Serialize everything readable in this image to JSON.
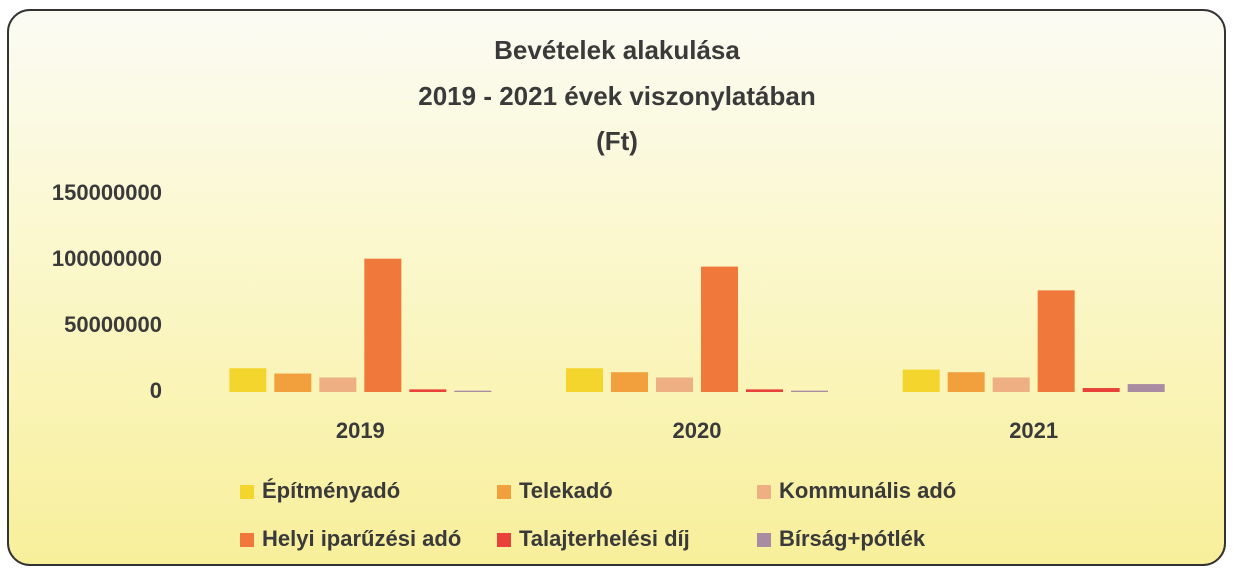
{
  "chart_data": {
    "type": "bar",
    "title": [
      "Bevételek alakulása",
      "2019 - 2021 évek viszonylatában",
      "(Ft)"
    ],
    "categories": [
      "2019",
      "2020",
      "2021"
    ],
    "series": [
      {
        "name": "Építményadó",
        "color": "#f3d52e",
        "values": [
          18000000,
          18000000,
          17000000
        ]
      },
      {
        "name": "Telekadó",
        "color": "#f2a03e",
        "values": [
          14000000,
          15000000,
          15000000
        ]
      },
      {
        "name": "Kommunális adó",
        "color": "#eeaf82",
        "values": [
          11000000,
          11000000,
          11000000
        ]
      },
      {
        "name": "Helyi iparűzési adó",
        "color": "#f0783a",
        "values": [
          101000000,
          95000000,
          77000000
        ]
      },
      {
        "name": "Talajterhelési díj",
        "color": "#e8423a",
        "values": [
          2000000,
          2000000,
          3000000
        ]
      },
      {
        "name": "Bírság+pótlék",
        "color": "#a98ca2",
        "values": [
          1000000,
          1000000,
          6000000
        ]
      }
    ],
    "ylim": [
      0,
      150000000
    ],
    "yticks": [
      0,
      50000000,
      100000000,
      150000000
    ],
    "grid": false
  }
}
